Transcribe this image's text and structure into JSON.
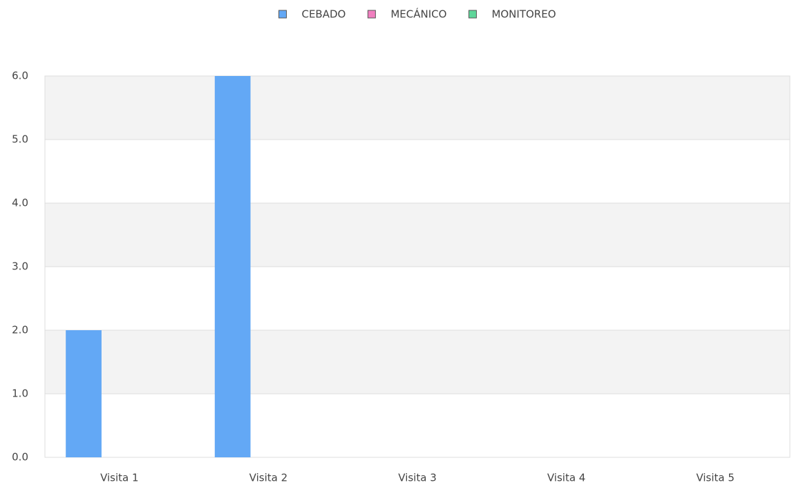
{
  "chart_data": {
    "type": "bar",
    "categories": [
      "Visita 1",
      "Visita 2",
      "Visita 3",
      "Visita 4",
      "Visita 5"
    ],
    "series": [
      {
        "name": "CEBADO",
        "color": "#63a8f5",
        "values": [
          2,
          6,
          0,
          0,
          0
        ]
      },
      {
        "name": "MECÁNICO",
        "color": "#f07fbf",
        "values": [
          0,
          0,
          0,
          0,
          0
        ]
      },
      {
        "name": "MONITOREO",
        "color": "#5fd69a",
        "values": [
          0,
          0,
          0,
          0,
          0
        ]
      }
    ],
    "ylim": [
      0,
      6
    ],
    "yticks": [
      {
        "value": 0,
        "label": "0.0"
      },
      {
        "value": 1,
        "label": "1.0"
      },
      {
        "value": 2,
        "label": "2.0"
      },
      {
        "value": 3,
        "label": "3.0"
      },
      {
        "value": 4,
        "label": "4.0"
      },
      {
        "value": 5,
        "label": "5.0"
      },
      {
        "value": 6,
        "label": "6.0"
      }
    ],
    "grid": true,
    "legend": "top"
  }
}
